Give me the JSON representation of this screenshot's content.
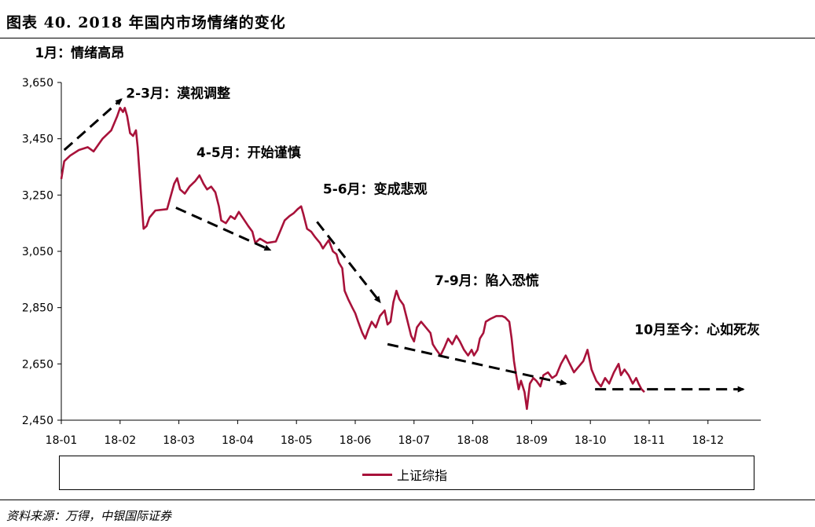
{
  "title": "图表 40. 2018 年国内市场情绪的变化",
  "source": "资料来源：万得，中银国际证券",
  "chart_data": {
    "type": "line",
    "title": "图表 40. 2018 年国内市场情绪的变化",
    "xlabel": "",
    "ylabel": "",
    "ylim": [
      2450,
      3650
    ],
    "yticks": [
      2450,
      2650,
      2850,
      3050,
      3250,
      3450,
      3650
    ],
    "ytick_labels": [
      "2,450",
      "2,650",
      "2,850",
      "3,050",
      "3,250",
      "3,450",
      "3,650"
    ],
    "xticks": [
      "18-01",
      "18-02",
      "18-03",
      "18-04",
      "18-05",
      "18-06",
      "18-07",
      "18-08",
      "18-09",
      "18-10",
      "18-11",
      "18-12"
    ],
    "legend": {
      "position": "bottom",
      "entries": [
        "上证综指"
      ]
    },
    "grid": false,
    "series": [
      {
        "name": "上证综指",
        "color": "#a8123a",
        "points": [
          [
            0.0,
            3307
          ],
          [
            0.05,
            3370
          ],
          [
            0.15,
            3390
          ],
          [
            0.3,
            3410
          ],
          [
            0.45,
            3420
          ],
          [
            0.55,
            3405
          ],
          [
            0.7,
            3450
          ],
          [
            0.85,
            3480
          ],
          [
            0.95,
            3530
          ],
          [
            1.0,
            3560
          ],
          [
            1.05,
            3545
          ],
          [
            1.08,
            3560
          ],
          [
            1.12,
            3530
          ],
          [
            1.17,
            3470
          ],
          [
            1.22,
            3460
          ],
          [
            1.27,
            3480
          ],
          [
            1.3,
            3420
          ],
          [
            1.35,
            3270
          ],
          [
            1.4,
            3130
          ],
          [
            1.45,
            3140
          ],
          [
            1.5,
            3170
          ],
          [
            1.6,
            3195
          ],
          [
            1.8,
            3200
          ],
          [
            1.92,
            3290
          ],
          [
            1.97,
            3310
          ],
          [
            2.02,
            3270
          ],
          [
            2.1,
            3255
          ],
          [
            2.18,
            3280
          ],
          [
            2.28,
            3300
          ],
          [
            2.35,
            3320
          ],
          [
            2.42,
            3290
          ],
          [
            2.48,
            3270
          ],
          [
            2.55,
            3280
          ],
          [
            2.62,
            3260
          ],
          [
            2.68,
            3210
          ],
          [
            2.72,
            3160
          ],
          [
            2.8,
            3150
          ],
          [
            2.88,
            3175
          ],
          [
            2.95,
            3165
          ],
          [
            3.02,
            3190
          ],
          [
            3.1,
            3165
          ],
          [
            3.18,
            3140
          ],
          [
            3.25,
            3120
          ],
          [
            3.3,
            3080
          ],
          [
            3.38,
            3095
          ],
          [
            3.5,
            3080
          ],
          [
            3.65,
            3085
          ],
          [
            3.72,
            3120
          ],
          [
            3.8,
            3160
          ],
          [
            3.88,
            3175
          ],
          [
            3.95,
            3185
          ],
          [
            4.02,
            3200
          ],
          [
            4.08,
            3210
          ],
          [
            4.12,
            3180
          ],
          [
            4.18,
            3130
          ],
          [
            4.25,
            3120
          ],
          [
            4.32,
            3100
          ],
          [
            4.4,
            3080
          ],
          [
            4.45,
            3060
          ],
          [
            4.5,
            3075
          ],
          [
            4.55,
            3090
          ],
          [
            4.62,
            3050
          ],
          [
            4.68,
            3040
          ],
          [
            4.72,
            3010
          ],
          [
            4.78,
            2990
          ],
          [
            4.82,
            2910
          ],
          [
            4.88,
            2880
          ],
          [
            4.95,
            2850
          ],
          [
            5.0,
            2830
          ],
          [
            5.05,
            2800
          ],
          [
            5.12,
            2760
          ],
          [
            5.17,
            2740
          ],
          [
            5.22,
            2770
          ],
          [
            5.28,
            2800
          ],
          [
            5.35,
            2780
          ],
          [
            5.42,
            2820
          ],
          [
            5.5,
            2840
          ],
          [
            5.55,
            2790
          ],
          [
            5.6,
            2800
          ],
          [
            5.65,
            2870
          ],
          [
            5.7,
            2910
          ],
          [
            5.75,
            2880
          ],
          [
            5.82,
            2860
          ],
          [
            5.88,
            2810
          ],
          [
            5.95,
            2750
          ],
          [
            6.0,
            2730
          ],
          [
            6.05,
            2780
          ],
          [
            6.12,
            2800
          ],
          [
            6.2,
            2780
          ],
          [
            6.28,
            2760
          ],
          [
            6.32,
            2720
          ],
          [
            6.38,
            2700
          ],
          [
            6.45,
            2680
          ],
          [
            6.52,
            2710
          ],
          [
            6.58,
            2740
          ],
          [
            6.65,
            2720
          ],
          [
            6.72,
            2750
          ],
          [
            6.78,
            2730
          ],
          [
            6.85,
            2700
          ],
          [
            6.92,
            2680
          ],
          [
            6.98,
            2700
          ],
          [
            7.02,
            2680
          ],
          [
            7.08,
            2700
          ],
          [
            7.12,
            2740
          ],
          [
            7.18,
            2760
          ],
          [
            7.22,
            2800
          ],
          [
            7.3,
            2810
          ],
          [
            7.4,
            2820
          ],
          [
            7.5,
            2820
          ],
          [
            7.55,
            2815
          ],
          [
            7.62,
            2800
          ],
          [
            7.66,
            2740
          ],
          [
            7.7,
            2660
          ],
          [
            7.73,
            2620
          ],
          [
            7.78,
            2560
          ],
          [
            7.82,
            2590
          ],
          [
            7.88,
            2550
          ],
          [
            7.92,
            2490
          ],
          [
            7.97,
            2580
          ],
          [
            8.03,
            2600
          ],
          [
            8.08,
            2590
          ],
          [
            8.15,
            2570
          ],
          [
            8.2,
            2610
          ],
          [
            8.28,
            2620
          ],
          [
            8.35,
            2600
          ],
          [
            8.42,
            2610
          ],
          [
            8.5,
            2650
          ],
          [
            8.58,
            2680
          ],
          [
            8.65,
            2650
          ],
          [
            8.72,
            2620
          ],
          [
            8.8,
            2640
          ],
          [
            8.88,
            2660
          ],
          [
            8.95,
            2700
          ],
          [
            9.02,
            2630
          ],
          [
            9.1,
            2590
          ],
          [
            9.18,
            2570
          ],
          [
            9.25,
            2600
          ],
          [
            9.32,
            2580
          ],
          [
            9.4,
            2620
          ],
          [
            9.48,
            2650
          ],
          [
            9.52,
            2610
          ],
          [
            9.58,
            2630
          ],
          [
            9.65,
            2610
          ],
          [
            9.72,
            2580
          ],
          [
            9.78,
            2600
          ],
          [
            9.82,
            2580
          ],
          [
            9.87,
            2560
          ],
          [
            9.92,
            2550
          ]
        ]
      }
    ],
    "annotations": [
      {
        "text": "1月：情绪高昂"
      },
      {
        "text": "2-3月：漠视调整"
      },
      {
        "text": "4-5月：开始谨慎"
      },
      {
        "text": "5-6月：变成悲观"
      },
      {
        "text": "7-9月：陷入恐慌"
      },
      {
        "text": "10月至今：心如死灰"
      }
    ]
  }
}
